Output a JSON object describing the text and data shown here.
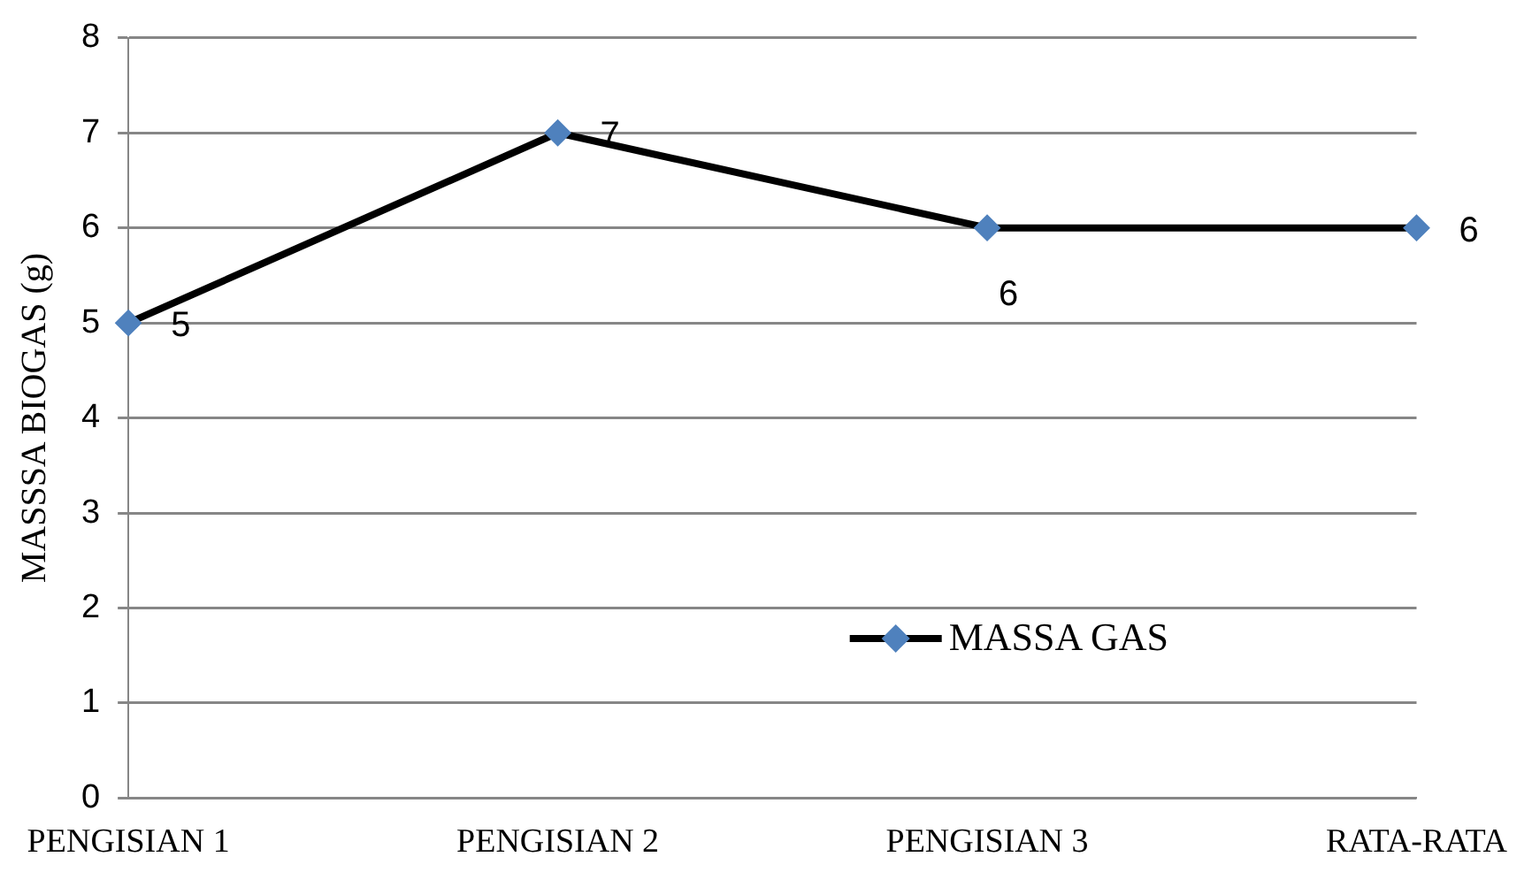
{
  "chart_data": {
    "type": "line",
    "ylabel": "MASSSA BIOGAS (g)",
    "categories": [
      "PENGISIAN 1",
      "PENGISIAN 2",
      "PENGISIAN 3",
      "RATA-RATA"
    ],
    "series": [
      {
        "name": "MASSA GAS",
        "color": "#000000",
        "colors": [
          "#4f81bd",
          "#4f81bd",
          "#4f81bd",
          "#4f81bd"
        ],
        "values": [
          5,
          7,
          6,
          6
        ]
      }
    ],
    "ylim": [
      0,
      8
    ],
    "yticks": [
      0,
      1,
      2,
      3,
      4,
      5,
      6,
      7,
      8
    ],
    "grid": "y",
    "legend": "bottom right",
    "marker": "diamond",
    "line_style": "solid",
    "data_labels": true
  }
}
